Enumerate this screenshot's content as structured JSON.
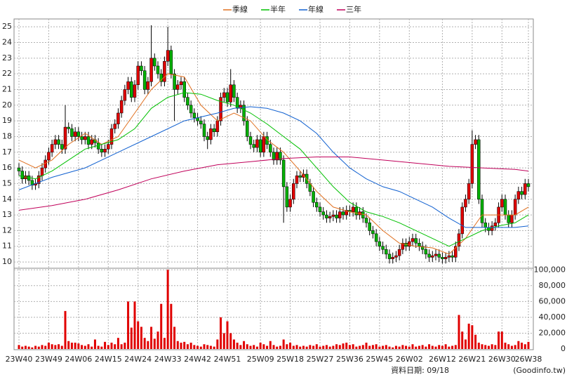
{
  "chart_data": [
    {
      "type": "candlestick",
      "categories": [
        "23W40",
        null,
        null,
        null,
        null,
        null,
        null,
        null,
        null,
        "23W49",
        null,
        null,
        null,
        null,
        null,
        null,
        null,
        null,
        "24W06",
        null,
        null,
        null,
        null,
        null,
        null,
        null,
        null,
        "24W15",
        null,
        null,
        null,
        null,
        null,
        null,
        null,
        null,
        "24W24",
        null,
        null,
        null,
        null,
        null,
        null,
        null,
        null,
        "24W33",
        null,
        null,
        null,
        null,
        null,
        null,
        null,
        null,
        "24W42",
        null,
        null,
        null,
        null,
        null,
        null,
        null,
        null,
        "24W51",
        null,
        null,
        null,
        null,
        null,
        null,
        null,
        null,
        null,
        "25W09",
        null,
        null,
        null,
        null,
        null,
        null,
        null,
        null,
        "25W18",
        null,
        null,
        null,
        null,
        null,
        null,
        null,
        null,
        "25W27",
        null,
        null,
        null,
        null,
        null,
        null,
        null,
        null,
        "25W36",
        null,
        null,
        null,
        null,
        null,
        null,
        null,
        null,
        "25W45",
        null,
        null,
        null,
        null,
        null,
        null,
        null,
        null,
        "26W02",
        null,
        null,
        null,
        null,
        null,
        null,
        null,
        null,
        null,
        "26W12",
        null,
        null,
        null,
        null,
        null,
        null,
        null,
        null,
        "26W21",
        null,
        null,
        null,
        null,
        null,
        null,
        null,
        null,
        "26W30",
        null,
        null,
        null,
        null,
        null,
        null,
        null,
        "26W38"
      ],
      "open": [
        16.0,
        15.8,
        15.3,
        15.5,
        15.2,
        14.9,
        15.0,
        15.5,
        16.0,
        16.5,
        17.0,
        17.5,
        17.8,
        17.5,
        17.2,
        18.6,
        18.5,
        18.0,
        18.3,
        18.0,
        17.8,
        18.0,
        17.5,
        17.8,
        17.6,
        17.2,
        17.0,
        17.2,
        17.5,
        18.5,
        18.8,
        19.5,
        20.3,
        21.0,
        21.5,
        20.5,
        21.3,
        22.5,
        22.2,
        21.0,
        21.5,
        23.0,
        22.5,
        22.0,
        21.5,
        22.8,
        23.5,
        22.0,
        21.0,
        21.3,
        21.5,
        20.5,
        20.0,
        19.5,
        19.2,
        19.0,
        18.8,
        18.0,
        17.8,
        18.5,
        18.3,
        19.0,
        20.5,
        20.8,
        20.2,
        21.3,
        20.5,
        19.8,
        20.0,
        19.0,
        18.0,
        17.5,
        17.3,
        17.8,
        17.0,
        18.0,
        17.5,
        17.0,
        16.5,
        17.0,
        16.5,
        14.8,
        13.5,
        14.0,
        15.0,
        15.5,
        15.4,
        15.6,
        15.0,
        14.5,
        13.8,
        13.5,
        13.2,
        13.0,
        12.8,
        12.9,
        13.0,
        12.8,
        13.2,
        13.0,
        13.3,
        13.2,
        13.5,
        13.0,
        13.2,
        12.8,
        12.5,
        12.0,
        11.8,
        11.3,
        11.0,
        10.8,
        10.5,
        10.2,
        10.3,
        10.4,
        10.8,
        11.2,
        11.0,
        11.3,
        11.5,
        11.2,
        11.0,
        10.8,
        10.5,
        10.3,
        10.4,
        10.5,
        10.3,
        10.2,
        10.3,
        10.4,
        10.3,
        11.0,
        11.8,
        13.5,
        14.0,
        15.0,
        17.5,
        17.8,
        14.0,
        12.5,
        12.2,
        12.0,
        12.3,
        12.5,
        13.5,
        14.0,
        13.0,
        12.5,
        13.0,
        14.0,
        14.5,
        14.3,
        15.0
      ],
      "high": [
        16.3,
        16.1,
        15.8,
        15.8,
        15.5,
        15.3,
        15.8,
        16.3,
        16.8,
        17.3,
        17.8,
        18.1,
        18.1,
        17.8,
        20.0,
        18.9,
        18.8,
        18.6,
        18.6,
        18.3,
        18.3,
        18.3,
        18.1,
        18.1,
        17.9,
        17.5,
        17.5,
        17.8,
        18.8,
        19.1,
        19.8,
        20.6,
        21.3,
        21.8,
        21.8,
        21.6,
        22.8,
        22.8,
        22.5,
        21.8,
        25.1,
        23.3,
        22.8,
        22.3,
        23.1,
        25.0,
        23.8,
        22.3,
        21.6,
        21.8,
        21.8,
        20.8,
        20.3,
        19.8,
        19.5,
        19.3,
        19.1,
        18.3,
        18.8,
        18.8,
        19.3,
        20.8,
        21.1,
        21.1,
        22.3,
        21.6,
        20.8,
        20.3,
        20.3,
        19.3,
        18.3,
        17.8,
        18.1,
        18.1,
        18.3,
        18.3,
        17.8,
        17.3,
        17.3,
        17.3,
        16.8,
        15.1,
        14.3,
        15.3,
        15.8,
        15.8,
        15.9,
        15.9,
        15.3,
        14.8,
        14.1,
        13.8,
        13.5,
        13.3,
        13.2,
        13.3,
        13.3,
        13.5,
        13.5,
        13.6,
        13.6,
        13.8,
        13.8,
        13.5,
        13.5,
        13.1,
        12.8,
        12.3,
        12.1,
        11.6,
        11.3,
        11.1,
        10.8,
        10.6,
        10.7,
        11.1,
        11.5,
        11.5,
        11.6,
        11.8,
        11.8,
        11.5,
        11.3,
        11.1,
        10.8,
        10.7,
        10.8,
        10.8,
        10.6,
        10.6,
        10.7,
        10.7,
        11.3,
        12.1,
        13.8,
        14.3,
        15.3,
        18.4,
        18.1,
        18.1,
        14.3,
        12.8,
        12.5,
        12.6,
        12.8,
        13.8,
        14.3,
        14.3,
        13.3,
        13.3,
        14.3,
        14.8,
        14.8,
        15.3,
        15.3
      ],
      "low": [
        15.5,
        15.0,
        15.0,
        14.9,
        14.6,
        14.6,
        14.7,
        15.2,
        15.7,
        16.2,
        16.7,
        17.2,
        17.2,
        16.9,
        16.9,
        18.2,
        17.7,
        17.7,
        17.7,
        17.5,
        17.5,
        17.2,
        17.2,
        17.3,
        16.9,
        16.7,
        16.7,
        16.9,
        17.2,
        18.2,
        18.5,
        19.2,
        20.0,
        20.7,
        20.2,
        20.2,
        21.0,
        21.9,
        20.7,
        20.7,
        21.2,
        22.2,
        21.7,
        21.2,
        21.2,
        22.5,
        21.7,
        19.0,
        20.7,
        21.0,
        20.2,
        19.7,
        19.2,
        18.9,
        18.7,
        18.5,
        17.7,
        17.2,
        17.5,
        18.0,
        18.0,
        18.7,
        20.2,
        19.9,
        19.9,
        20.2,
        19.5,
        19.5,
        18.7,
        17.7,
        17.2,
        17.0,
        17.0,
        16.7,
        16.7,
        17.2,
        16.7,
        16.2,
        16.2,
        16.2,
        12.5,
        13.2,
        13.2,
        13.7,
        14.7,
        15.1,
        15.1,
        14.7,
        14.2,
        13.5,
        13.2,
        12.9,
        12.7,
        12.5,
        12.5,
        12.6,
        12.5,
        12.5,
        12.7,
        12.7,
        12.9,
        12.9,
        12.7,
        12.7,
        12.5,
        12.2,
        11.7,
        11.5,
        11.0,
        10.7,
        10.5,
        10.2,
        9.9,
        9.9,
        10.0,
        10.1,
        10.5,
        10.7,
        10.7,
        11.0,
        10.9,
        10.7,
        10.5,
        10.2,
        10.0,
        10.0,
        10.1,
        10.0,
        9.9,
        9.9,
        10.0,
        10.0,
        10.0,
        10.7,
        11.5,
        13.2,
        13.7,
        14.7,
        17.2,
        13.7,
        12.2,
        11.9,
        11.7,
        11.7,
        12.0,
        12.2,
        13.2,
        12.7,
        12.2,
        12.2,
        12.7,
        13.7,
        14.0,
        14.0,
        14.5
      ],
      "close": [
        15.8,
        15.3,
        15.5,
        15.2,
        14.9,
        15.0,
        15.5,
        16.0,
        16.5,
        17.0,
        17.5,
        17.8,
        17.5,
        17.2,
        18.6,
        18.5,
        18.0,
        18.3,
        18.0,
        17.8,
        18.0,
        17.5,
        17.8,
        17.6,
        17.2,
        17.0,
        17.2,
        17.5,
        18.5,
        18.8,
        19.5,
        20.3,
        21.0,
        21.5,
        20.5,
        21.3,
        22.5,
        22.2,
        21.0,
        21.5,
        23.0,
        22.5,
        22.0,
        21.5,
        22.8,
        23.5,
        22.0,
        21.0,
        21.3,
        21.5,
        20.5,
        20.0,
        19.5,
        19.2,
        19.0,
        18.8,
        18.0,
        17.8,
        18.5,
        18.3,
        19.0,
        20.5,
        20.8,
        20.2,
        21.3,
        20.5,
        19.8,
        20.0,
        19.0,
        18.0,
        17.5,
        17.3,
        17.8,
        17.0,
        18.0,
        17.5,
        17.0,
        16.5,
        17.0,
        16.5,
        14.8,
        13.5,
        14.0,
        15.0,
        15.5,
        15.4,
        15.6,
        15.0,
        14.5,
        13.8,
        13.5,
        13.2,
        13.0,
        12.8,
        12.9,
        13.0,
        12.8,
        13.2,
        13.0,
        13.3,
        13.2,
        13.5,
        13.0,
        13.2,
        12.8,
        12.5,
        12.0,
        11.8,
        11.3,
        11.0,
        10.8,
        10.5,
        10.2,
        10.3,
        10.4,
        10.8,
        11.2,
        11.0,
        11.3,
        11.5,
        11.2,
        11.0,
        10.8,
        10.5,
        10.3,
        10.4,
        10.5,
        10.3,
        10.2,
        10.3,
        10.4,
        10.3,
        11.0,
        11.8,
        13.5,
        14.0,
        15.0,
        17.5,
        17.8,
        14.0,
        12.5,
        12.2,
        12.0,
        12.3,
        12.5,
        13.5,
        14.0,
        13.0,
        12.5,
        13.0,
        14.0,
        14.5,
        14.3,
        15.0,
        14.8
      ],
      "up_color": "#e00000",
      "down_color": "#00b000",
      "series": [
        {
          "name": "季線",
          "color": "#e07020",
          "x": [
            0,
            5,
            10,
            15,
            20,
            25,
            30,
            35,
            40,
            45,
            50,
            55,
            60,
            65,
            70,
            75,
            80,
            85,
            90,
            95,
            100,
            105,
            110,
            115,
            120,
            125,
            130,
            135,
            140,
            145,
            150,
            154
          ],
          "values": [
            16.5,
            16.0,
            16.5,
            17.5,
            18.2,
            17.5,
            18.0,
            19.5,
            21.0,
            22.0,
            21.8,
            20.0,
            19.0,
            19.5,
            19.0,
            17.8,
            17.0,
            15.8,
            14.5,
            13.5,
            13.2,
            13.0,
            12.0,
            11.2,
            11.0,
            10.9,
            10.5,
            11.5,
            13.0,
            13.0,
            13.0,
            13.5
          ]
        },
        {
          "name": "半年",
          "color": "#00c000",
          "x": [
            0,
            5,
            10,
            15,
            20,
            25,
            30,
            35,
            40,
            45,
            50,
            55,
            60,
            65,
            70,
            75,
            80,
            85,
            90,
            95,
            100,
            105,
            110,
            115,
            120,
            125,
            130,
            135,
            140,
            145,
            150,
            154
          ],
          "values": [
            15.5,
            15.3,
            15.8,
            16.5,
            17.2,
            17.5,
            17.8,
            18.5,
            19.8,
            20.5,
            20.8,
            20.7,
            20.3,
            20.0,
            19.5,
            18.8,
            18.0,
            17.2,
            16.0,
            14.8,
            13.8,
            13.2,
            12.9,
            12.5,
            12.0,
            11.5,
            11.0,
            11.5,
            12.0,
            12.3,
            12.5,
            13.0
          ]
        },
        {
          "name": "年線",
          "color": "#1060d0",
          "x": [
            0,
            10,
            20,
            30,
            40,
            50,
            60,
            65,
            70,
            75,
            80,
            85,
            90,
            95,
            100,
            105,
            110,
            115,
            120,
            125,
            130,
            135,
            140,
            145,
            150,
            154
          ],
          "values": [
            14.6,
            15.4,
            16.0,
            17.0,
            18.0,
            19.0,
            19.5,
            19.8,
            19.9,
            19.8,
            19.5,
            19.0,
            18.2,
            17.0,
            16.0,
            15.3,
            14.8,
            14.5,
            14.0,
            13.5,
            12.8,
            12.2,
            12.2,
            12.2,
            12.2,
            12.3
          ]
        },
        {
          "name": "三年",
          "color": "#c0005a",
          "x": [
            0,
            10,
            20,
            30,
            40,
            50,
            60,
            70,
            80,
            90,
            100,
            110,
            120,
            130,
            140,
            150,
            154
          ],
          "values": [
            13.3,
            13.6,
            14.0,
            14.6,
            15.3,
            15.8,
            16.2,
            16.4,
            16.6,
            16.7,
            16.7,
            16.5,
            16.3,
            16.1,
            16.0,
            15.9,
            15.8
          ]
        }
      ],
      "ylim": [
        9.6,
        25.5
      ],
      "yticks": [
        10,
        11,
        12,
        13,
        14,
        15,
        16,
        17,
        18,
        19,
        20,
        21,
        22,
        23,
        24,
        25
      ],
      "grid": true
    },
    {
      "type": "bar",
      "color": "#e00000",
      "values": [
        5000,
        3000,
        4000,
        3000,
        2000,
        4000,
        3000,
        5000,
        4000,
        8000,
        6000,
        5000,
        6000,
        4000,
        48000,
        10000,
        8000,
        8000,
        7000,
        5000,
        4000,
        6000,
        3000,
        12000,
        4000,
        3000,
        9000,
        5000,
        8000,
        6000,
        14000,
        6000,
        8000,
        60000,
        27000,
        60000,
        35000,
        28000,
        14000,
        10000,
        28000,
        13000,
        22000,
        57000,
        14000,
        100000,
        57000,
        28000,
        10000,
        8000,
        9000,
        6000,
        8000,
        5000,
        4000,
        3000,
        6000,
        5000,
        4000,
        3000,
        12000,
        40000,
        20000,
        35000,
        20000,
        12000,
        8000,
        5000,
        10000,
        6000,
        4000,
        5000,
        3000,
        8000,
        6000,
        4000,
        10000,
        5000,
        3000,
        4000,
        12000,
        6000,
        8000,
        4000,
        5000,
        3000,
        4000,
        3000,
        5000,
        4000,
        6000,
        3000,
        4000,
        5000,
        3000,
        4000,
        6000,
        5000,
        7000,
        8000,
        5000,
        6000,
        3000,
        4000,
        5000,
        8000,
        4000,
        5000,
        6000,
        3000,
        4000,
        5000,
        3000,
        2000,
        4000,
        3000,
        5000,
        4000,
        3000,
        6000,
        3000,
        4000,
        5000,
        3000,
        6000,
        4000,
        3000,
        5000,
        4000,
        6000,
        3000,
        4000,
        5000,
        43000,
        22000,
        12000,
        32000,
        30000,
        18000,
        8000,
        6000,
        5000,
        4000,
        6000,
        5000,
        22000,
        22000,
        8000,
        6000,
        4000,
        5000,
        10000,
        8000,
        6000,
        9000
      ],
      "ylim": [
        0,
        102000
      ],
      "yticks": [
        0,
        {
          "value": 20000,
          "label": "20,000"
        },
        {
          "value": 40000,
          "label": "40,000"
        },
        {
          "value": 60000,
          "label": "60,000"
        },
        {
          "value": 80000,
          "label": "80,000"
        },
        {
          "value": 100000,
          "label": "100,000"
        }
      ],
      "grid": true
    }
  ],
  "footer": {
    "date_label": "資料日期: 09/18",
    "source": "(Goodinfo.tw)"
  }
}
